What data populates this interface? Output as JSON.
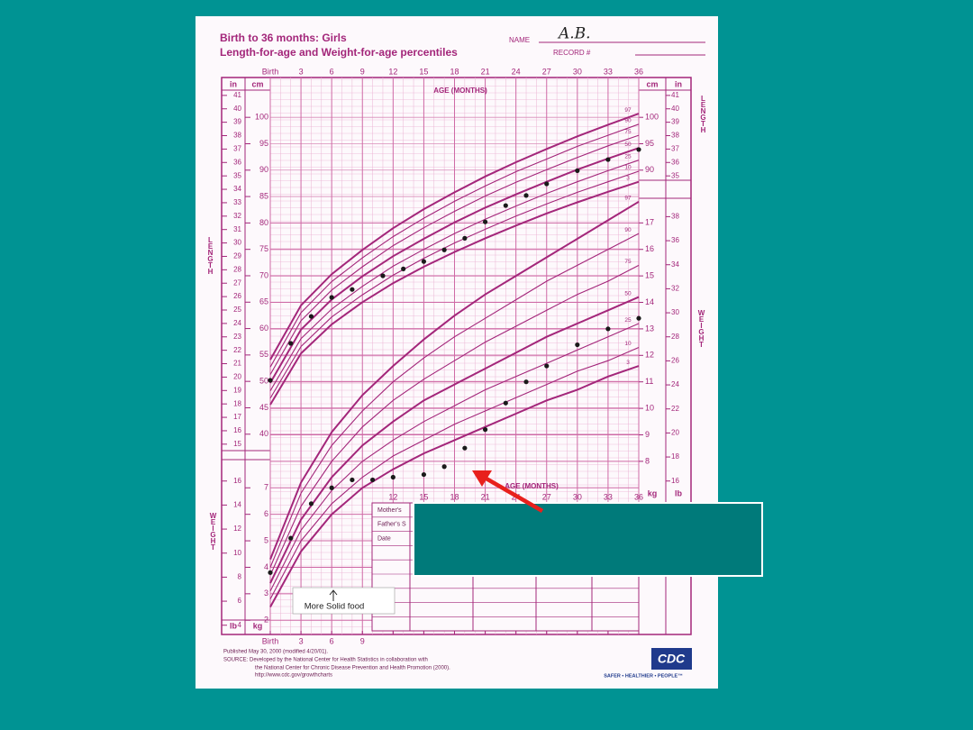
{
  "header": {
    "title": "Birth to 36 months: Girls",
    "subtitle": "Length-for-age and Weight-for-age percentiles",
    "name_label": "NAME",
    "name_value": "A.B.",
    "record_label": "RECORD #"
  },
  "chart_data": [
    {
      "type": "line",
      "ylabel": "LENGTH",
      "xlabel": "AGE (MONTHS)",
      "y_unit": "cm",
      "y2_unit": "in",
      "x": [
        0,
        3,
        6,
        9,
        12,
        15,
        18,
        21,
        24,
        27,
        30,
        33,
        36
      ],
      "xlim": [
        0,
        36
      ],
      "xticks": [
        {
          "value": 0,
          "label": "Birth"
        },
        3,
        6,
        9,
        12,
        15,
        18,
        21,
        24,
        27,
        30,
        33,
        36
      ],
      "ylim": [
        37.4,
        107.2
      ],
      "yticks": [
        40,
        45,
        50,
        55,
        60,
        65,
        70,
        75,
        80,
        85,
        90,
        95,
        100
      ],
      "y2lim": [
        14.72,
        42.2
      ],
      "y2ticks": [
        15,
        16,
        17,
        18,
        19,
        20,
        21,
        22,
        23,
        24,
        25,
        26,
        27,
        28,
        29,
        30,
        31,
        32,
        33,
        34,
        35,
        36,
        37,
        38,
        39,
        40,
        41
      ],
      "series": [
        {
          "name": "97",
          "color": "#a3267a",
          "values": [
            54.1,
            64.4,
            70.3,
            74.9,
            79.0,
            82.6,
            85.8,
            88.8,
            91.5,
            94.0,
            96.4,
            98.6,
            100.7
          ]
        },
        {
          "name": "90",
          "color": "#a3267a",
          "values": [
            52.7,
            63.0,
            68.9,
            73.4,
            77.4,
            80.9,
            84.1,
            87.0,
            89.7,
            92.1,
            94.5,
            96.6,
            98.7
          ]
        },
        {
          "name": "75",
          "color": "#a3267a",
          "values": [
            51.3,
            61.5,
            67.3,
            71.7,
            75.7,
            79.1,
            82.2,
            85.1,
            87.7,
            90.1,
            92.4,
            94.6,
            96.6
          ]
        },
        {
          "name": "50",
          "color": "#a3267a",
          "values": [
            49.7,
            59.8,
            65.5,
            69.9,
            73.7,
            77.0,
            80.1,
            82.9,
            85.4,
            87.8,
            90.1,
            92.2,
            94.2
          ]
        },
        {
          "name": "25",
          "color": "#a3267a",
          "values": [
            48.2,
            58.1,
            63.7,
            68.0,
            71.8,
            75.0,
            78.0,
            80.7,
            83.2,
            85.6,
            87.8,
            89.9,
            91.9
          ]
        },
        {
          "name": "10",
          "color": "#a3267a",
          "values": [
            46.8,
            56.6,
            62.2,
            66.4,
            70.1,
            73.3,
            76.2,
            78.8,
            81.3,
            83.6,
            85.8,
            87.8,
            89.8
          ]
        },
        {
          "name": "3",
          "color": "#a3267a",
          "values": [
            45.6,
            55.3,
            60.8,
            65.0,
            68.6,
            71.7,
            74.5,
            77.1,
            79.5,
            81.8,
            83.9,
            85.9,
            87.8
          ]
        }
      ]
    },
    {
      "type": "scatter",
      "color": "#1a1a1a",
      "xlim": [
        0,
        36
      ],
      "ylim": [
        37.4,
        107.2
      ],
      "x": [
        0,
        2,
        4,
        6,
        8,
        11,
        13,
        15,
        17,
        19,
        21,
        23,
        25,
        27,
        30,
        33,
        36
      ],
      "values": [
        50.2,
        57.2,
        62.3,
        65.9,
        67.4,
        70.0,
        71.3,
        72.7,
        74.9,
        77.1,
        80.2,
        83.3,
        85.2,
        87.4,
        89.9,
        92.0,
        93.9
      ]
    },
    {
      "type": "line",
      "ylabel": "WEIGHT",
      "xlabel": "AGE (MONTHS)",
      "y_unit": "kg",
      "y2_unit": "lb",
      "x": [
        0,
        3,
        6,
        9,
        12,
        15,
        18,
        21,
        24,
        27,
        30,
        33,
        36
      ],
      "xlim": [
        0,
        36
      ],
      "xticks": [
        {
          "value": 0,
          "label": "Birth"
        },
        3,
        6,
        9,
        12,
        15,
        18,
        21,
        24,
        27,
        30,
        33,
        36
      ],
      "ylim": [
        1.6,
        17.93
      ],
      "yticks": [
        2,
        3,
        4,
        5,
        6,
        7,
        8,
        9,
        10,
        11,
        12,
        13,
        14,
        15,
        16,
        17
      ],
      "y2lim": [
        3.53,
        39.53
      ],
      "y2ticks": [
        4,
        6,
        8,
        10,
        12,
        14,
        16,
        18,
        20,
        22,
        24,
        26,
        28,
        30,
        32,
        34,
        36,
        38
      ],
      "series": [
        {
          "name": "97",
          "color": "#a3267a",
          "values": [
            4.3,
            7.2,
            9.1,
            10.5,
            11.6,
            12.6,
            13.5,
            14.3,
            15.0,
            15.7,
            16.4,
            17.1,
            17.8
          ]
        },
        {
          "name": "90",
          "color": "#a3267a",
          "values": [
            4.0,
            6.8,
            8.6,
            9.9,
            11.0,
            11.9,
            12.7,
            13.4,
            14.1,
            14.8,
            15.4,
            16.0,
            16.6
          ]
        },
        {
          "name": "75",
          "color": "#a3267a",
          "values": [
            3.7,
            6.3,
            8.0,
            9.3,
            10.3,
            11.1,
            11.8,
            12.5,
            13.1,
            13.7,
            14.3,
            14.8,
            15.4
          ]
        },
        {
          "name": "50",
          "color": "#a3267a",
          "values": [
            3.4,
            5.8,
            7.4,
            8.6,
            9.5,
            10.3,
            10.9,
            11.5,
            12.1,
            12.7,
            13.2,
            13.7,
            14.2
          ]
        },
        {
          "name": "25",
          "color": "#a3267a",
          "values": [
            3.1,
            5.4,
            6.9,
            8.0,
            8.8,
            9.5,
            10.1,
            10.7,
            11.2,
            11.7,
            12.2,
            12.7,
            13.2
          ]
        },
        {
          "name": "10",
          "color": "#a3267a",
          "values": [
            2.8,
            5.0,
            6.4,
            7.4,
            8.2,
            8.8,
            9.4,
            9.9,
            10.4,
            10.9,
            11.4,
            11.8,
            12.3
          ]
        },
        {
          "name": "3",
          "color": "#a3267a",
          "values": [
            2.5,
            4.6,
            6.0,
            7.0,
            7.7,
            8.3,
            8.8,
            9.3,
            9.8,
            10.3,
            10.7,
            11.2,
            11.6
          ]
        }
      ]
    },
    {
      "type": "scatter",
      "color": "#1a1a1a",
      "xlim": [
        0,
        36
      ],
      "ylim": [
        1.6,
        17.93
      ],
      "x": [
        0,
        2,
        4,
        6,
        8,
        10,
        12,
        15,
        17,
        19,
        21,
        23,
        25,
        27,
        30,
        33,
        36
      ],
      "values": [
        3.8,
        5.1,
        6.4,
        7.0,
        7.3,
        7.3,
        7.4,
        7.5,
        7.8,
        8.5,
        9.2,
        10.2,
        11.0,
        11.6,
        12.4,
        13.0,
        13.4
      ]
    }
  ],
  "lower_table": {
    "rows": [
      "Mother's",
      "Father's S",
      "Date"
    ]
  },
  "annotation": "More Solid food",
  "footer": {
    "published": "Published May 30, 2000 (modified 4/20/01).",
    "source_1": "SOURCE: Developed by the National Center for Health Statistics in collaboration with",
    "source_2": "the National Center for Chronic Disease Prevention and Health Promotion (2000).",
    "url": "http://www.cdc.gov/growthcharts",
    "logo": "CDC",
    "tagline": "SAFER • HEALTHIER • PEOPLE™"
  }
}
